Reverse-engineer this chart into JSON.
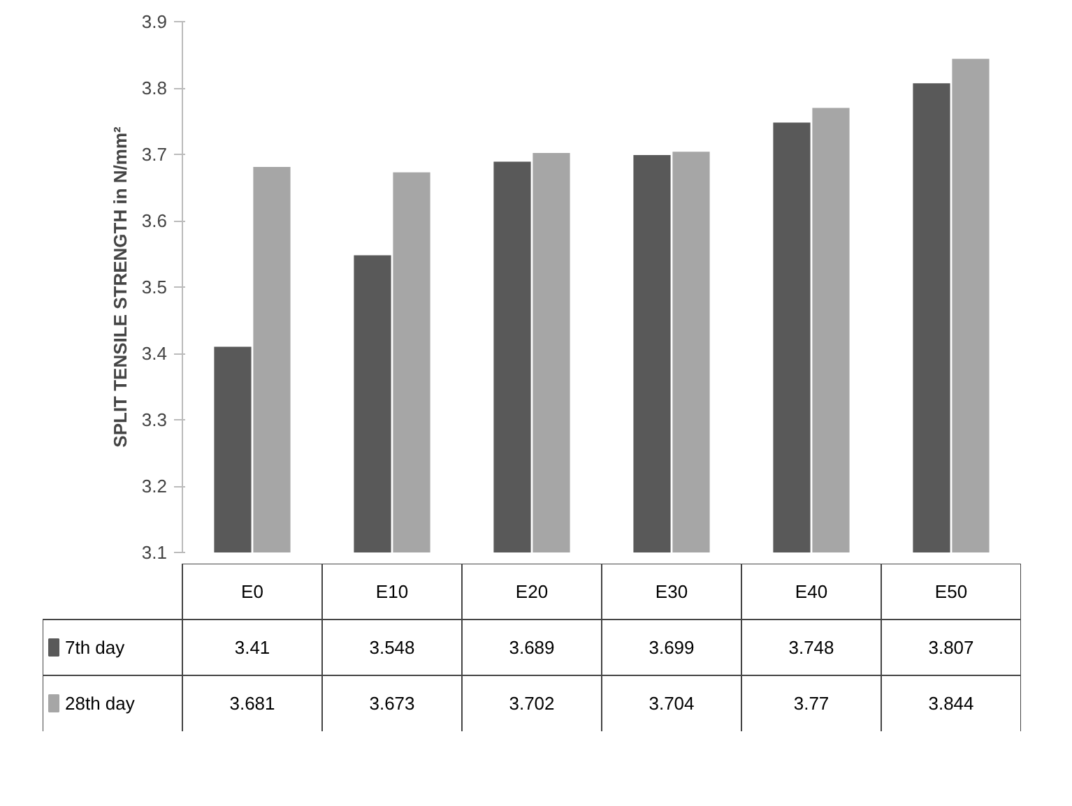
{
  "chart_data": {
    "type": "bar",
    "ylabel": "SPLIT TENSILE STRENGTH in N/mm²",
    "categories": [
      "E0",
      "E10",
      "E20",
      "E30",
      "E40",
      "E50"
    ],
    "series": [
      {
        "name": "7th day",
        "color": "#595959",
        "values": [
          3.41,
          3.548,
          3.689,
          3.699,
          3.748,
          3.807
        ]
      },
      {
        "name": "28th day",
        "color": "#a6a6a6",
        "values": [
          3.681,
          3.673,
          3.702,
          3.704,
          3.77,
          3.844
        ]
      }
    ],
    "ylim": [
      3.1,
      3.9
    ],
    "yticks": [
      3.1,
      3.2,
      3.3,
      3.4,
      3.5,
      3.6,
      3.7,
      3.8,
      3.9
    ],
    "grid": false,
    "legend": "bottom",
    "data_labels": true
  }
}
